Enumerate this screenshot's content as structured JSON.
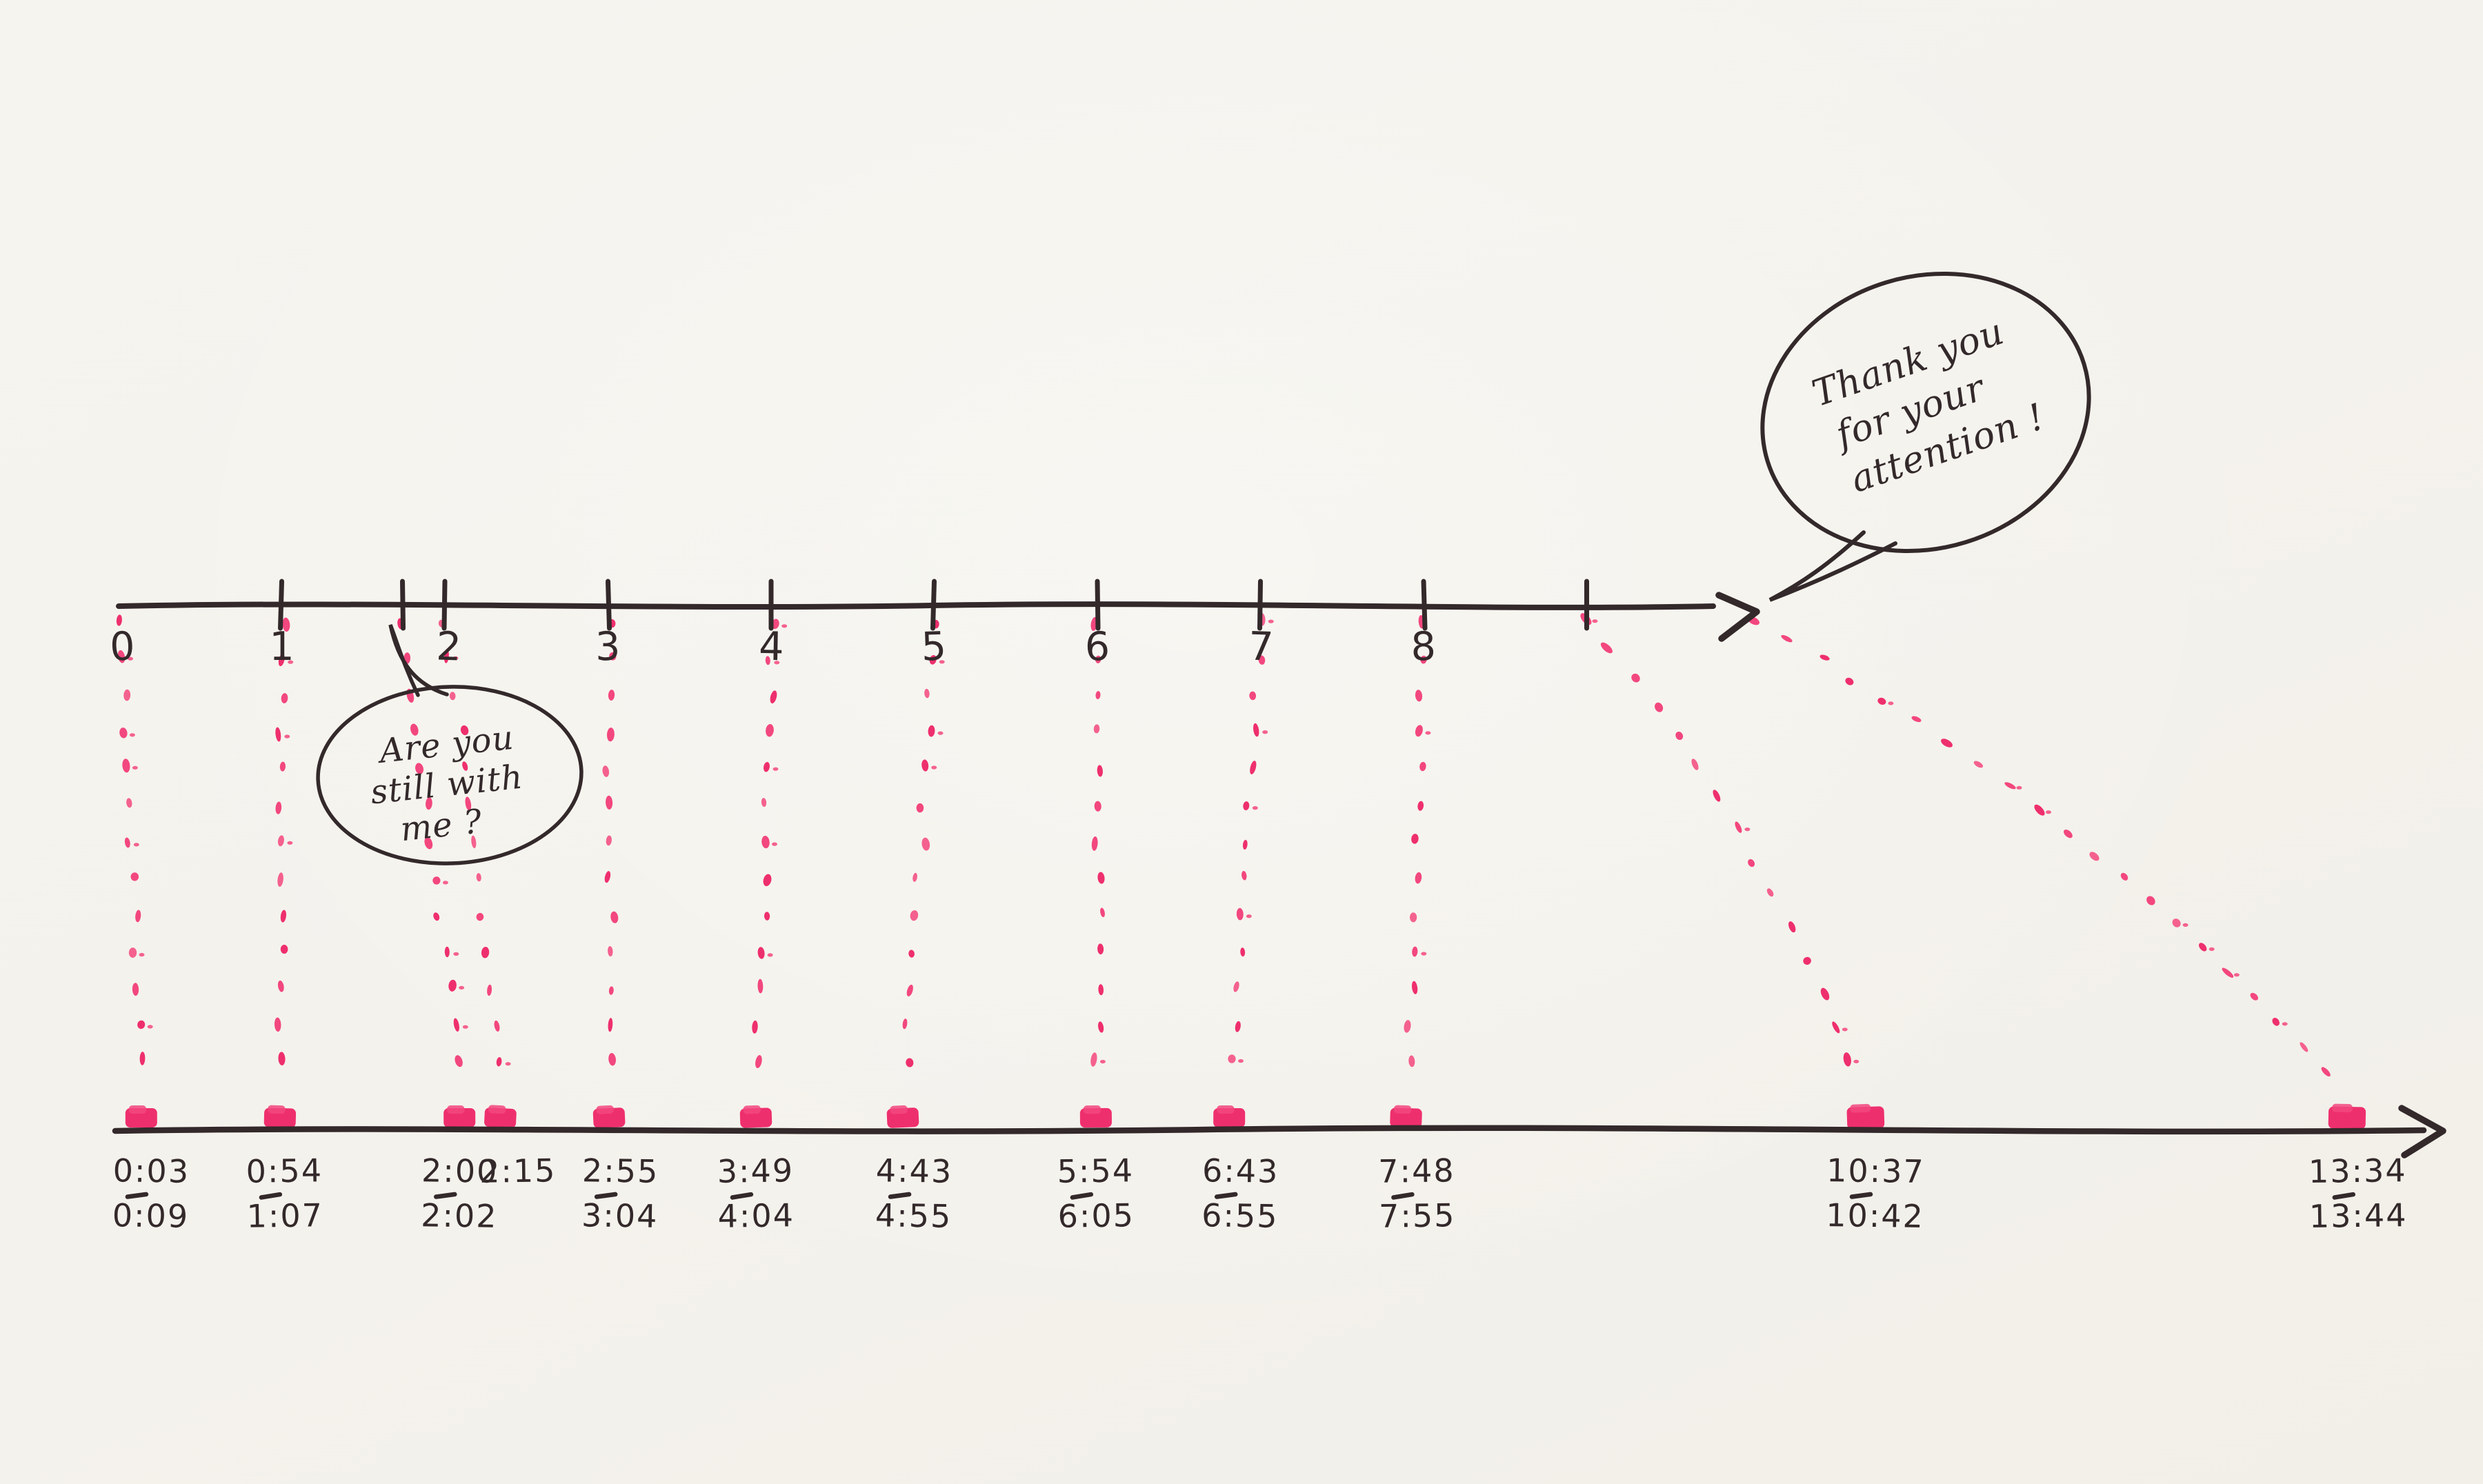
{
  "colors": {
    "paper": "#f4f2ec",
    "ink": "#33292b",
    "pink": "#ee2f6e",
    "pink_light": "#f2477f",
    "pink_soft": "#f4618f"
  },
  "top_axis": {
    "numerals": [
      "0",
      "1",
      "2",
      "3",
      "4",
      "5",
      "6",
      "7",
      "8"
    ]
  },
  "speech_bubbles": [
    {
      "id": "still-with-me",
      "lines": [
        "Are you",
        "still with",
        "me ?"
      ]
    },
    {
      "id": "thank-you",
      "lines": [
        "Thank you",
        "for your",
        "attention !"
      ]
    }
  ],
  "chart_data": {
    "type": "timeline",
    "top_scale_ticks": [
      "0",
      "1",
      "2",
      "3",
      "4",
      "5",
      "6",
      "7",
      "8"
    ],
    "events": [
      {
        "tick": "0",
        "shown_from": "0:03",
        "shown_to": "0:09"
      },
      {
        "tick": "1",
        "shown_from": "0:54",
        "shown_to": "1:07"
      },
      {
        "tick": "2",
        "shown_from": "2:00",
        "shown_to": "2:02"
      },
      {
        "tick": "2",
        "shown_from": "2:15",
        "shown_to": ""
      },
      {
        "tick": "3",
        "shown_from": "2:55",
        "shown_to": "3:04"
      },
      {
        "tick": "4",
        "shown_from": "3:49",
        "shown_to": "4:04"
      },
      {
        "tick": "5",
        "shown_from": "4:43",
        "shown_to": "4:55"
      },
      {
        "tick": "6",
        "shown_from": "5:54",
        "shown_to": "6:05"
      },
      {
        "tick": "7",
        "shown_from": "6:43",
        "shown_to": "6:55"
      },
      {
        "tick": "8",
        "shown_from": "7:48",
        "shown_to": "7:55"
      },
      {
        "tick": "",
        "shown_from": "10:37",
        "shown_to": "10:42"
      },
      {
        "tick": "",
        "shown_from": "13:34",
        "shown_to": "13:44"
      }
    ]
  }
}
